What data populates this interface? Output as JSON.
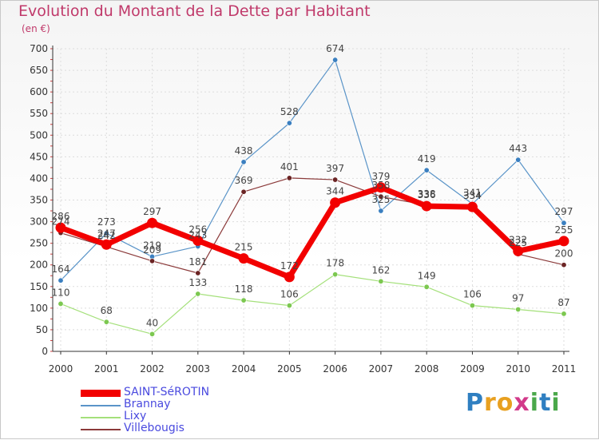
{
  "title": "Evolution du Montant de la Dette par Habitant",
  "subtitle": "(en €)",
  "logo": {
    "text": "Proxiti",
    "colors": [
      "#2f7fc1",
      "#e8a020",
      "#e8a020",
      "#d23a8a",
      "#4aa84a",
      "#2f7fc1",
      "#4aa84a"
    ]
  },
  "chart_data": {
    "type": "line",
    "x": [
      "2000",
      "2001",
      "2002",
      "2003",
      "2004",
      "2005",
      "2006",
      "2007",
      "2008",
      "2009",
      "2010",
      "2011"
    ],
    "yticks": [
      "0",
      "50",
      "100",
      "150",
      "200",
      "250",
      "300",
      "350",
      "400",
      "450",
      "500",
      "550",
      "600",
      "650",
      "700"
    ],
    "ylim": [
      0,
      700
    ],
    "grid": true,
    "legend_placement": "bottom-left",
    "series": [
      {
        "name": "Brannay",
        "color": "#5a94c8",
        "marker": "#3a7fc0",
        "width": 1.2,
        "values": [
          164,
          273,
          219,
          243,
          438,
          528,
          674,
          325,
          419,
          341,
          443,
          297
        ]
      },
      {
        "name": "Lixy",
        "color": "#a4e07a",
        "marker": "#7cc850",
        "width": 1.2,
        "values": [
          110,
          68,
          40,
          133,
          118,
          106,
          178,
          162,
          149,
          106,
          97,
          87
        ]
      },
      {
        "name": "Villebougis",
        "color": "#8b3a3a",
        "marker": "#6b2424",
        "width": 1.2,
        "values": [
          274,
          242,
          209,
          181,
          369,
          401,
          397,
          358,
          338,
          334,
          225,
          200
        ]
      },
      {
        "name": "SAINT-SéROTIN",
        "color": "#f20000",
        "marker": "#f20000",
        "width": 7,
        "values": [
          286,
          247,
          297,
          256,
          215,
          172,
          344,
          379,
          336,
          334,
          232,
          255
        ]
      }
    ],
    "data_labels": [
      {
        "series": 0,
        "labels": [
          "164",
          "273",
          "219",
          "243",
          "438",
          "528",
          "674",
          "325",
          "419",
          "341",
          "443",
          "297"
        ]
      },
      {
        "series": 1,
        "labels": [
          "110",
          "68",
          "40",
          "133",
          "118",
          "106",
          "178",
          "162",
          "149",
          "106",
          "97",
          "87"
        ]
      },
      {
        "series": 2,
        "labels": [
          "274",
          "242",
          "209",
          "181",
          "369",
          "401",
          "397",
          "358",
          "338",
          "334",
          "225",
          "200"
        ]
      },
      {
        "series": 3,
        "labels": [
          "286",
          "247",
          "297",
          "256",
          "215",
          "172",
          "344",
          "379",
          "336",
          "334",
          "232",
          "255"
        ]
      }
    ]
  },
  "legend": [
    {
      "label": "SAINT-SéROTIN",
      "color": "#f20000",
      "thick": true
    },
    {
      "label": "Brannay",
      "color": "#5a94c8",
      "thick": false
    },
    {
      "label": "Lixy",
      "color": "#a4e07a",
      "thick": false
    },
    {
      "label": "Villebougis",
      "color": "#8b3a3a",
      "thick": false
    }
  ]
}
